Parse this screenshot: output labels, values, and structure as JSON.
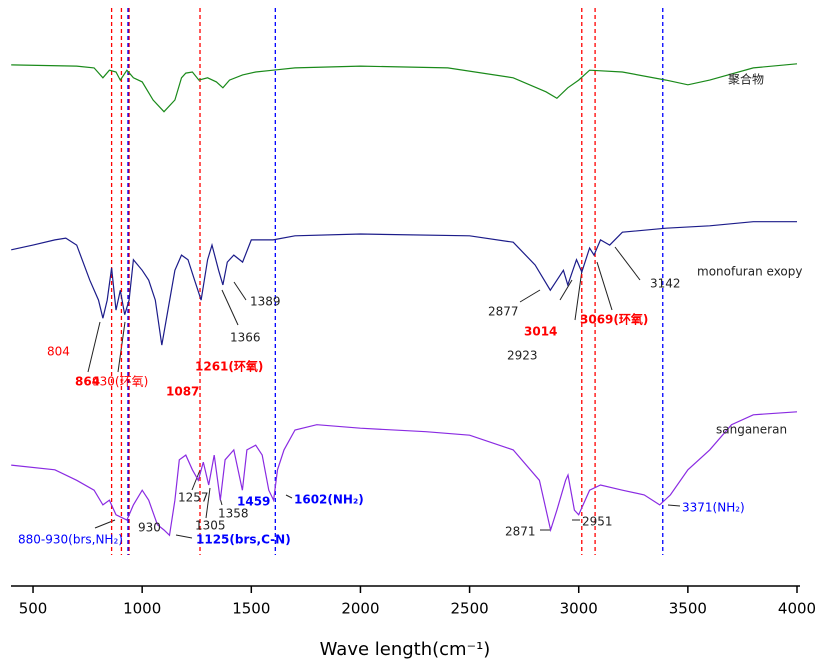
{
  "chart_data": {
    "type": "line",
    "x_label": "Wave length(cm⁻¹)",
    "xlim": [
      400,
      4000
    ],
    "xticks": [
      500,
      1000,
      1500,
      2000,
      2500,
      3000,
      3500,
      4000
    ],
    "ylim": [
      0,
      100
    ],
    "series": [
      {
        "name": "聚合物",
        "color": "#1a8a1a",
        "x": [
          400,
          700,
          780,
          820,
          850,
          880,
          900,
          930,
          960,
          1000,
          1050,
          1100,
          1150,
          1180,
          1200,
          1230,
          1260,
          1300,
          1340,
          1370,
          1400,
          1460,
          1520,
          1600,
          1700,
          2000,
          2400,
          2700,
          2850,
          2900,
          2950,
          3000,
          3050,
          3200,
          3400,
          3500,
          3600,
          3800,
          4000
        ],
        "values": [
          88.9,
          88.7,
          88.4,
          86.7,
          88.0,
          87.7,
          86.3,
          88.0,
          86.7,
          86.0,
          82.9,
          80.9,
          82.9,
          86.7,
          87.5,
          87.7,
          86.3,
          86.7,
          86.0,
          85.0,
          86.3,
          87.2,
          87.7,
          88.0,
          88.4,
          88.7,
          88.4,
          86.7,
          84.3,
          83.2,
          85.0,
          86.3,
          88.0,
          87.7,
          86.3,
          85.5,
          86.3,
          88.4,
          89.1
        ]
      },
      {
        "name": "monofuran exopy",
        "color": "#1c1c8a",
        "x": [
          400,
          500,
          600,
          650,
          700,
          760,
          800,
          820,
          840,
          860,
          880,
          900,
          920,
          940,
          960,
          1000,
          1030,
          1060,
          1090,
          1110,
          1150,
          1180,
          1210,
          1240,
          1270,
          1300,
          1320,
          1350,
          1370,
          1390,
          1420,
          1460,
          1500,
          1600,
          1700,
          2000,
          2500,
          2700,
          2800,
          2870,
          2900,
          2930,
          2950,
          2990,
          3014,
          3050,
          3070,
          3100,
          3142,
          3200,
          3400,
          3600,
          3800,
          4000
        ],
        "values": [
          57.3,
          58.1,
          59.0,
          59.3,
          58.1,
          52.1,
          48.7,
          45.6,
          48.7,
          54.2,
          47.0,
          50.4,
          46.2,
          48.7,
          55.6,
          53.8,
          52.1,
          48.7,
          41.0,
          45.3,
          53.8,
          56.4,
          55.6,
          52.1,
          48.7,
          55.6,
          58.1,
          53.8,
          51.3,
          55.2,
          56.4,
          55.2,
          59.0,
          59.0,
          59.7,
          60.0,
          59.7,
          58.6,
          54.7,
          50.4,
          52.1,
          53.8,
          51.3,
          55.6,
          53.5,
          57.6,
          56.4,
          59.0,
          58.1,
          60.3,
          61.0,
          61.4,
          62.1,
          62.1
        ]
      },
      {
        "name": "sanganeran",
        "color": "#8a2be2",
        "x": [
          400,
          600,
          700,
          780,
          820,
          850,
          880,
          930,
          960,
          1000,
          1030,
          1070,
          1100,
          1125,
          1150,
          1170,
          1200,
          1230,
          1257,
          1280,
          1305,
          1330,
          1358,
          1380,
          1420,
          1459,
          1480,
          1520,
          1550,
          1580,
          1602,
          1620,
          1650,
          1700,
          1800,
          2000,
          2300,
          2500,
          2700,
          2820,
          2871,
          2900,
          2940,
          2951,
          2980,
          3000,
          3050,
          3100,
          3200,
          3300,
          3371,
          3420,
          3500,
          3600,
          3700,
          3800,
          4000
        ],
        "values": [
          20.5,
          19.7,
          17.9,
          16.2,
          13.7,
          14.5,
          12.0,
          11.1,
          13.7,
          16.2,
          14.5,
          10.3,
          9.4,
          8.5,
          14.5,
          21.4,
          22.2,
          19.7,
          17.9,
          21.0,
          17.1,
          22.2,
          14.5,
          21.4,
          23.1,
          16.2,
          23.1,
          23.9,
          22.2,
          16.2,
          14.5,
          19.7,
          23.1,
          26.5,
          27.4,
          26.8,
          26.2,
          25.6,
          23.1,
          17.9,
          9.4,
          12.8,
          17.9,
          18.8,
          12.8,
          12.0,
          16.2,
          17.1,
          16.2,
          15.4,
          13.7,
          15.4,
          19.7,
          23.1,
          27.4,
          29.1,
          29.6
        ]
      }
    ],
    "reference_lines": [
      {
        "x": 860,
        "color": "#ff0000"
      },
      {
        "x": 905,
        "color": "#ff0000"
      },
      {
        "x": 940,
        "color": "#ff0000"
      },
      {
        "x": 1265,
        "color": "#ff0000"
      },
      {
        "x": 3014,
        "color": "#ff0000"
      },
      {
        "x": 3075,
        "color": "#ff0000"
      },
      {
        "x": 935,
        "color": "#0000ff"
      },
      {
        "x": 1610,
        "color": "#0000ff"
      },
      {
        "x": 3385,
        "color": "#0000ff"
      }
    ],
    "annotations": [
      {
        "text": "804",
        "color": "#ff0000"
      },
      {
        "text": "864",
        "color": "#ff0000"
      },
      {
        "text": "930(环氧)",
        "color": "#ff0000"
      },
      {
        "text": "1087",
        "color": "#ff0000"
      },
      {
        "text": "1261(环氧)",
        "color": "#ff0000"
      },
      {
        "text": "1366",
        "color": "#222222"
      },
      {
        "text": "1389",
        "color": "#222222"
      },
      {
        "text": "2877",
        "color": "#222222"
      },
      {
        "text": "3014",
        "color": "#ff0000"
      },
      {
        "text": "2923",
        "color": "#222222"
      },
      {
        "text": "3069(环氧)",
        "color": "#ff0000"
      },
      {
        "text": "3142",
        "color": "#222222"
      },
      {
        "text": "880-930(brs,NH₂)",
        "color": "#0000ff"
      },
      {
        "text": "930",
        "color": "#222222"
      },
      {
        "text": "1125(brs,C-N)",
        "color": "#0000ff"
      },
      {
        "text": "1257",
        "color": "#222222"
      },
      {
        "text": "1305",
        "color": "#222222"
      },
      {
        "text": "1358",
        "color": "#222222"
      },
      {
        "text": "1459",
        "color": "#0000ff"
      },
      {
        "text": "1602(NH₂)",
        "color": "#0000ff"
      },
      {
        "text": "2871",
        "color": "#222222"
      },
      {
        "text": "2951",
        "color": "#222222"
      },
      {
        "text": "3371(NH₂)",
        "color": "#0000ff"
      }
    ]
  }
}
